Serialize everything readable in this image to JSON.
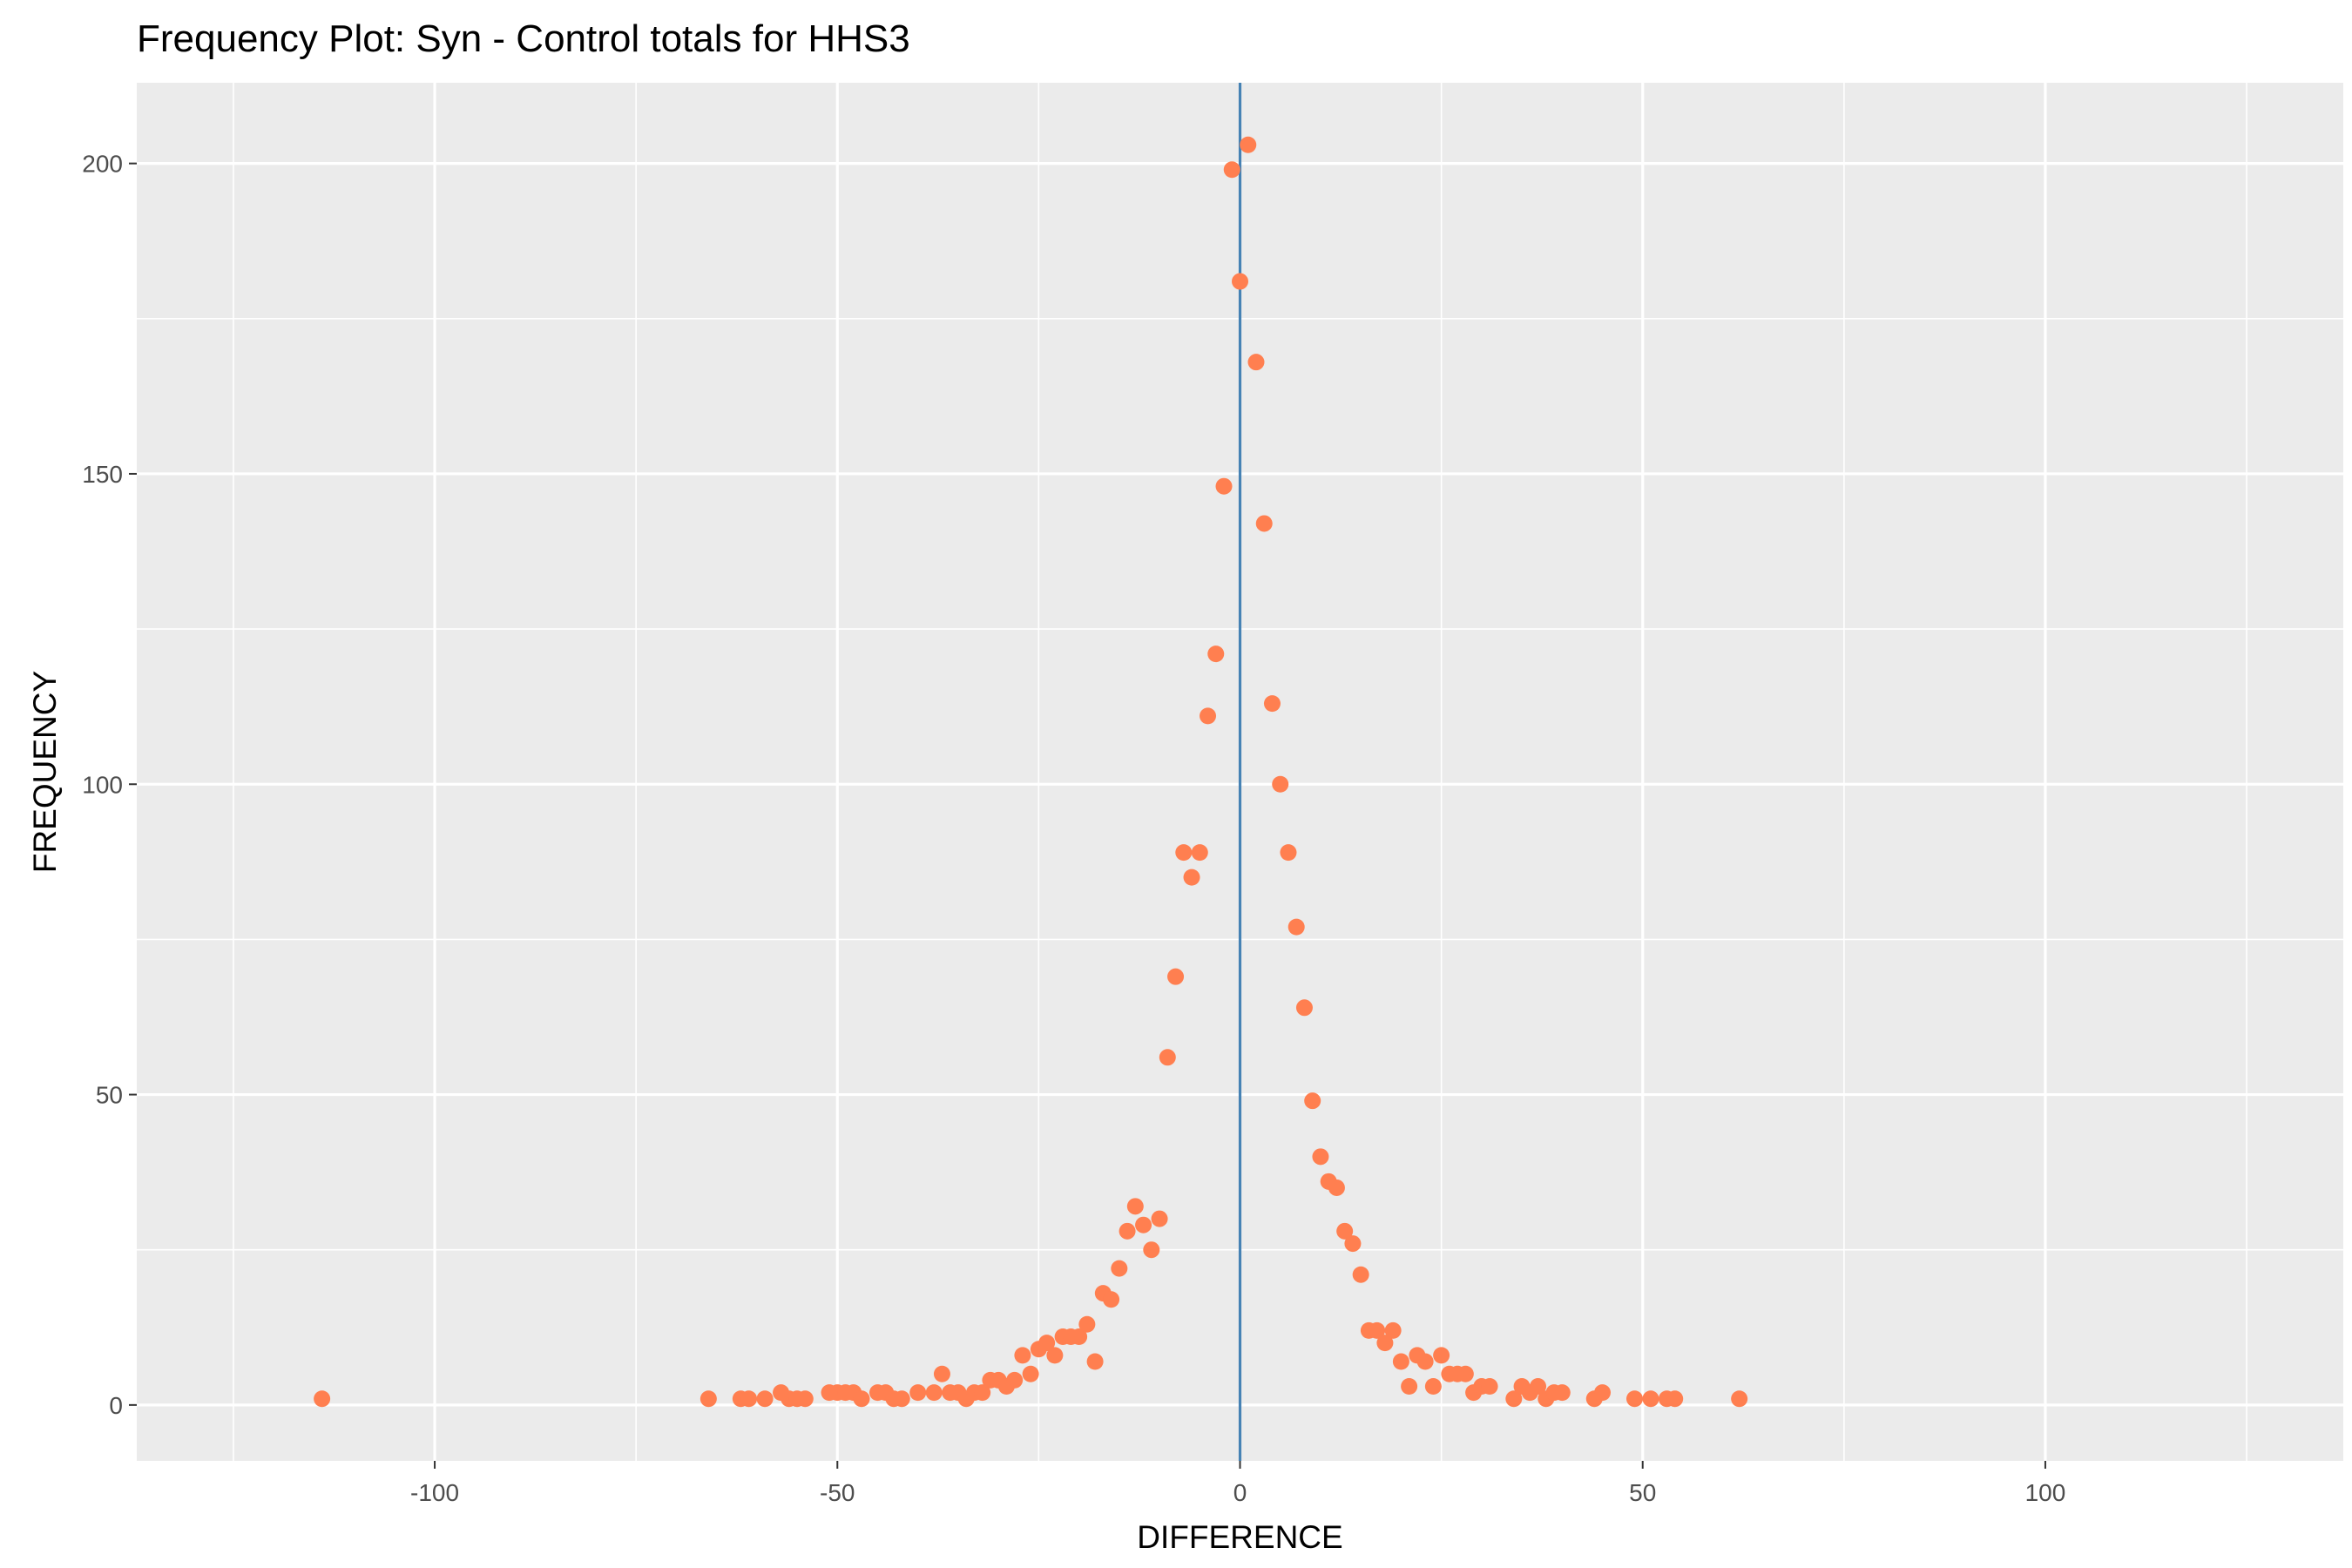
{
  "chart_data": {
    "type": "scatter",
    "title": "Frequency Plot: Syn - Control totals for HHS3",
    "xlabel": "DIFFERENCE",
    "ylabel": "FREQUENCY",
    "xlim": [
      -137,
      137
    ],
    "ylim": [
      -9,
      213
    ],
    "x_ticks": [
      -100,
      -50,
      0,
      50,
      100
    ],
    "x_tick_labels": [
      "-100",
      "-50",
      "0",
      "50",
      "100"
    ],
    "y_ticks": [
      0,
      50,
      100,
      150,
      200
    ],
    "y_tick_labels": [
      "0",
      "50",
      "100",
      "150",
      "200"
    ],
    "grid": true,
    "panel_background": "#EBEBEB",
    "point_color": "#FF7F50",
    "vline": {
      "x": 0,
      "color": "#4682B4"
    },
    "points": [
      [
        -114,
        1
      ],
      [
        -66,
        1
      ],
      [
        -62,
        1
      ],
      [
        -61,
        1
      ],
      [
        -59,
        1
      ],
      [
        -57,
        2
      ],
      [
        -56,
        1
      ],
      [
        -55,
        1
      ],
      [
        -54,
        1
      ],
      [
        -51,
        2
      ],
      [
        -50,
        2
      ],
      [
        -49,
        2
      ],
      [
        -48,
        2
      ],
      [
        -47,
        1
      ],
      [
        -45,
        2
      ],
      [
        -44,
        2
      ],
      [
        -43,
        1
      ],
      [
        -42,
        1
      ],
      [
        -40,
        2
      ],
      [
        -38,
        2
      ],
      [
        -37,
        5
      ],
      [
        -36,
        2
      ],
      [
        -35,
        2
      ],
      [
        -34,
        1
      ],
      [
        -33,
        2
      ],
      [
        -32,
        2
      ],
      [
        -31,
        4
      ],
      [
        -30,
        4
      ],
      [
        -29,
        3
      ],
      [
        -28,
        4
      ],
      [
        -27,
        8
      ],
      [
        -26,
        5
      ],
      [
        -25,
        9
      ],
      [
        -24,
        10
      ],
      [
        -23,
        8
      ],
      [
        -22,
        11
      ],
      [
        -21,
        11
      ],
      [
        -20,
        11
      ],
      [
        -19,
        13
      ],
      [
        -18,
        7
      ],
      [
        -17,
        18
      ],
      [
        -16,
        17
      ],
      [
        -15,
        22
      ],
      [
        -14,
        28
      ],
      [
        -13,
        32
      ],
      [
        -12,
        29
      ],
      [
        -11,
        25
      ],
      [
        -10,
        30
      ],
      [
        -9,
        56
      ],
      [
        -8,
        69
      ],
      [
        -7,
        89
      ],
      [
        -6,
        85
      ],
      [
        -5,
        89
      ],
      [
        -4,
        111
      ],
      [
        -3,
        121
      ],
      [
        -2,
        148
      ],
      [
        -1,
        199
      ],
      [
        0,
        181
      ],
      [
        1,
        203
      ],
      [
        2,
        168
      ],
      [
        3,
        142
      ],
      [
        4,
        113
      ],
      [
        5,
        100
      ],
      [
        6,
        89
      ],
      [
        7,
        77
      ],
      [
        8,
        64
      ],
      [
        9,
        49
      ],
      [
        10,
        40
      ],
      [
        11,
        36
      ],
      [
        12,
        35
      ],
      [
        13,
        28
      ],
      [
        14,
        26
      ],
      [
        15,
        21
      ],
      [
        16,
        12
      ],
      [
        17,
        12
      ],
      [
        18,
        10
      ],
      [
        19,
        12
      ],
      [
        20,
        7
      ],
      [
        21,
        3
      ],
      [
        22,
        8
      ],
      [
        23,
        7
      ],
      [
        24,
        3
      ],
      [
        25,
        8
      ],
      [
        26,
        5
      ],
      [
        27,
        5
      ],
      [
        28,
        5
      ],
      [
        29,
        2
      ],
      [
        30,
        3
      ],
      [
        31,
        3
      ],
      [
        34,
        1
      ],
      [
        35,
        3
      ],
      [
        36,
        2
      ],
      [
        37,
        3
      ],
      [
        38,
        1
      ],
      [
        39,
        2
      ],
      [
        40,
        2
      ],
      [
        44,
        1
      ],
      [
        45,
        2
      ],
      [
        49,
        1
      ],
      [
        51,
        1
      ],
      [
        53,
        1
      ],
      [
        54,
        1
      ],
      [
        62,
        1
      ]
    ]
  }
}
